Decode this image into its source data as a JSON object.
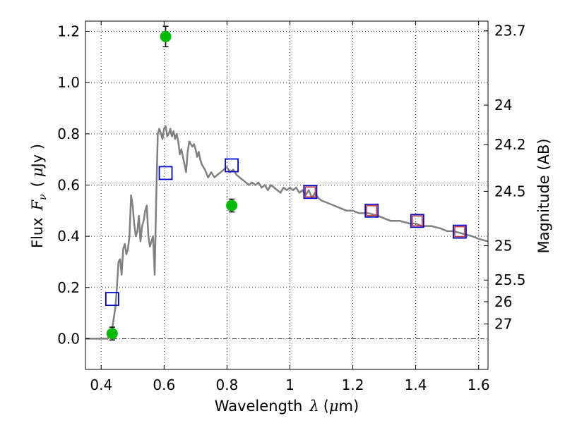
{
  "chart_data": {
    "type": "scatter",
    "xlabel_text": "Wavelength",
    "xlabel_symbol": "λ",
    "xlabel_unit_open": "(",
    "xlabel_unit_mu": "μ",
    "xlabel_unit_rest": "m)",
    "ylabel_text": "Flux",
    "ylabel_symbol": "F",
    "ylabel_subscript": "ν",
    "ylabel_unit_open": "(",
    "ylabel_unit_mu": "μ",
    "ylabel_unit_rest": "Jy )",
    "y2label": "Magnitude (AB)",
    "xlim": [
      0.35,
      1.63
    ],
    "ylim": [
      -0.12,
      1.24
    ],
    "grid": true,
    "x_ticks": [
      {
        "value": 0.4,
        "label": "0.4"
      },
      {
        "value": 0.6,
        "label": "0.6"
      },
      {
        "value": 0.8,
        "label": "0.8"
      },
      {
        "value": 1.0,
        "label": "1"
      },
      {
        "value": 1.2,
        "label": "1.2"
      },
      {
        "value": 1.4,
        "label": "1.4"
      },
      {
        "value": 1.6,
        "label": "1.6"
      }
    ],
    "y_ticks": [
      {
        "value": 0.0,
        "label": "0.0"
      },
      {
        "value": 0.2,
        "label": "0.2"
      },
      {
        "value": 0.4,
        "label": "0.4"
      },
      {
        "value": 0.6,
        "label": "0.6"
      },
      {
        "value": 0.8,
        "label": "0.8"
      },
      {
        "value": 1.0,
        "label": "1.0"
      },
      {
        "value": 1.2,
        "label": "1.2"
      }
    ],
    "mag_ticks": [
      {
        "label": "23.7"
      },
      {
        "label": "24"
      },
      {
        "label": "24.2"
      },
      {
        "label": "24.5"
      },
      {
        "label": "25"
      },
      {
        "label": "25.5"
      },
      {
        "label": "26"
      },
      {
        "label": "27"
      }
    ],
    "zero_line": 0.0,
    "sed_model": {
      "color": "#808080",
      "x": [
        0.35,
        0.42,
        0.425,
        0.43,
        0.435,
        0.44,
        0.445,
        0.45,
        0.455,
        0.46,
        0.465,
        0.47,
        0.475,
        0.48,
        0.485,
        0.49,
        0.495,
        0.5,
        0.505,
        0.51,
        0.515,
        0.52,
        0.525,
        0.53,
        0.535,
        0.54,
        0.545,
        0.55,
        0.555,
        0.56,
        0.565,
        0.57,
        0.575,
        0.58,
        0.585,
        0.59,
        0.595,
        0.6,
        0.605,
        0.61,
        0.615,
        0.62,
        0.625,
        0.63,
        0.635,
        0.64,
        0.645,
        0.65,
        0.655,
        0.66,
        0.665,
        0.67,
        0.675,
        0.68,
        0.685,
        0.69,
        0.695,
        0.7,
        0.705,
        0.71,
        0.715,
        0.72,
        0.73,
        0.74,
        0.75,
        0.76,
        0.77,
        0.78,
        0.79,
        0.8,
        0.81,
        0.82,
        0.83,
        0.84,
        0.85,
        0.86,
        0.87,
        0.88,
        0.89,
        0.9,
        0.91,
        0.92,
        0.93,
        0.94,
        0.95,
        0.96,
        0.97,
        0.98,
        0.99,
        1.0,
        1.01,
        1.02,
        1.03,
        1.04,
        1.05,
        1.06,
        1.07,
        1.08,
        1.09,
        1.1,
        1.12,
        1.14,
        1.16,
        1.18,
        1.2,
        1.22,
        1.25,
        1.28,
        1.3,
        1.32,
        1.35,
        1.38,
        1.4,
        1.42,
        1.45,
        1.48,
        1.5,
        1.52,
        1.55,
        1.58,
        1.6,
        1.63
      ],
      "y": [
        0.0,
        0.0,
        0.01,
        0.02,
        0.04,
        0.08,
        0.12,
        0.2,
        0.3,
        0.31,
        0.25,
        0.35,
        0.37,
        0.33,
        0.35,
        0.4,
        0.56,
        0.52,
        0.45,
        0.4,
        0.42,
        0.48,
        0.38,
        0.44,
        0.46,
        0.5,
        0.52,
        0.4,
        0.36,
        0.38,
        0.4,
        0.25,
        0.55,
        0.8,
        0.82,
        0.8,
        0.78,
        0.82,
        0.83,
        0.79,
        0.8,
        0.82,
        0.79,
        0.81,
        0.78,
        0.8,
        0.77,
        0.72,
        0.74,
        0.71,
        0.68,
        0.65,
        0.73,
        0.77,
        0.76,
        0.75,
        0.76,
        0.74,
        0.71,
        0.73,
        0.7,
        0.68,
        0.66,
        0.63,
        0.65,
        0.63,
        0.64,
        0.65,
        0.66,
        0.67,
        0.65,
        0.66,
        0.64,
        0.63,
        0.62,
        0.61,
        0.6,
        0.61,
        0.6,
        0.61,
        0.59,
        0.6,
        0.58,
        0.6,
        0.59,
        0.58,
        0.57,
        0.59,
        0.58,
        0.59,
        0.58,
        0.59,
        0.57,
        0.58,
        0.56,
        0.58,
        0.55,
        0.57,
        0.55,
        0.54,
        0.53,
        0.52,
        0.51,
        0.5,
        0.5,
        0.49,
        0.49,
        0.48,
        0.47,
        0.46,
        0.46,
        0.45,
        0.45,
        0.44,
        0.44,
        0.43,
        0.42,
        0.42,
        0.41,
        0.4,
        0.39,
        0.38
      ]
    },
    "model_photometry": {
      "color": "#0000cc",
      "points": [
        {
          "x": 0.435,
          "y": 0.155
        },
        {
          "x": 0.605,
          "y": 0.647
        },
        {
          "x": 0.815,
          "y": 0.677
        },
        {
          "x": 1.065,
          "y": 0.573
        },
        {
          "x": 1.26,
          "y": 0.5
        },
        {
          "x": 1.405,
          "y": 0.46
        },
        {
          "x": 1.54,
          "y": 0.418
        }
      ]
    },
    "ir_photometry": {
      "color": "#cc3333",
      "points": [
        {
          "x": 1.065,
          "y": 0.573
        },
        {
          "x": 1.26,
          "y": 0.5
        },
        {
          "x": 1.405,
          "y": 0.46
        },
        {
          "x": 1.54,
          "y": 0.418
        }
      ]
    },
    "observed": {
      "color": "#00bb00",
      "points": [
        {
          "x": 0.435,
          "y": 0.02,
          "err": 0.025
        },
        {
          "x": 0.605,
          "y": 1.18,
          "err": 0.04
        },
        {
          "x": 0.815,
          "y": 0.52,
          "err": 0.025
        }
      ]
    }
  }
}
